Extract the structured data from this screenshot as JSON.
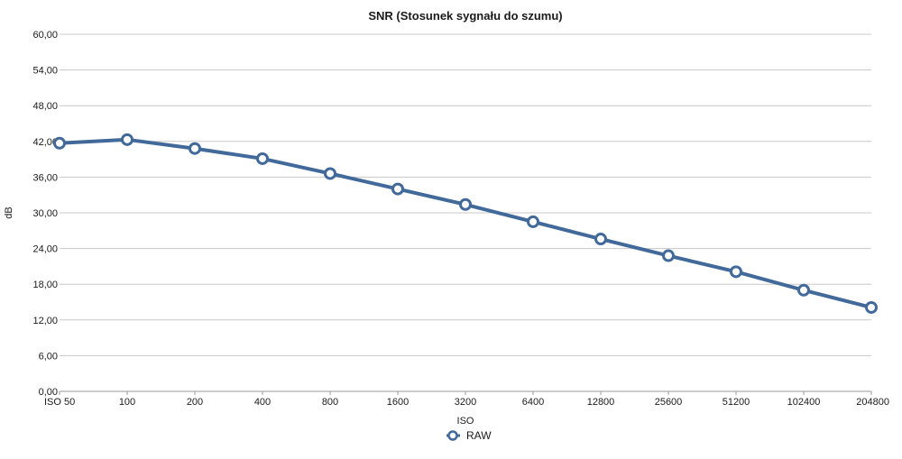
{
  "chart_data": {
    "type": "line",
    "title": "SNR (Stosunek sygnału do szumu)",
    "xlabel": "ISO",
    "ylabel": "dB",
    "categories": [
      "ISO 50",
      "100",
      "200",
      "400",
      "800",
      "1600",
      "3200",
      "6400",
      "12800",
      "25600",
      "51200",
      "102400",
      "204800"
    ],
    "series": [
      {
        "name": "RAW",
        "color": "#41699a",
        "values": [
          41.7,
          42.3,
          40.8,
          39.1,
          36.6,
          34.0,
          31.4,
          28.5,
          25.6,
          22.8,
          20.1,
          17.0,
          14.1
        ]
      }
    ],
    "ylim": [
      0,
      60
    ],
    "yticks": [
      "0,00",
      "6,00",
      "12,00",
      "18,00",
      "24,00",
      "30,00",
      "36,00",
      "42,00",
      "48,00",
      "54,00",
      "60,00"
    ],
    "grid": true,
    "legend_position": "bottom-center"
  }
}
